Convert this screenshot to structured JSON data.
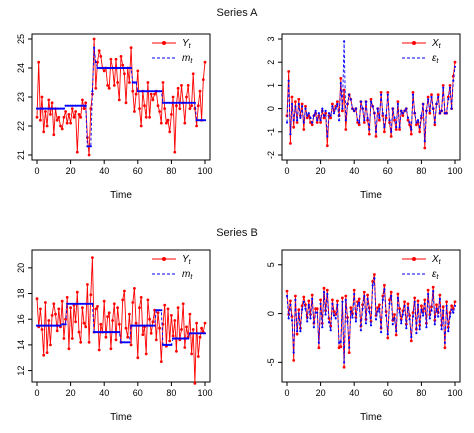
{
  "groups": [
    {
      "title": "Series A"
    },
    {
      "title": "Series B"
    }
  ],
  "colors": {
    "observed": "#ff0000",
    "smooth": "#0000ff",
    "axis": "#000000"
  },
  "chart_data": [
    {
      "type": "line",
      "xlabel": "Time",
      "ylabel": "",
      "xlim": [
        0,
        100
      ],
      "ylim": [
        21,
        25
      ],
      "xticks": [
        0,
        20,
        40,
        60,
        80,
        100
      ],
      "yticks": [
        21,
        22,
        23,
        24,
        25
      ],
      "grid": false,
      "legend": "top-right",
      "series": [
        {
          "name": "Y_t",
          "style": "solid-dot",
          "color": "#ff0000",
          "values": [
            22.3,
            24.2,
            22.2,
            23.0,
            21.8,
            22.5,
            22.0,
            22.9,
            22.4,
            22.8,
            21.7,
            22.6,
            22.2,
            22.3,
            22.0,
            21.9,
            22.3,
            22.5,
            22.1,
            22.4,
            22.1,
            22.6,
            22.3,
            22.5,
            21.1,
            22.4,
            22.3,
            22.9,
            22.6,
            22.8,
            21.6,
            21.0,
            22.6,
            23.1,
            25.0,
            23.3,
            24.2,
            24.6,
            24.4,
            24.0,
            23.9,
            24.0,
            23.4,
            23.3,
            24.3,
            24.0,
            23.4,
            24.3,
            23.5,
            22.9,
            24.4,
            24.1,
            23.8,
            22.8,
            24.0,
            23.5,
            24.7,
            23.2,
            22.5,
            23.1,
            23.9,
            22.6,
            22.0,
            23.2,
            22.7,
            22.3,
            23.5,
            22.3,
            23.1,
            22.9,
            23.1,
            23.2,
            22.7,
            22.5,
            22.1,
            23.5,
            22.6,
            22.1,
            22.2,
            21.8,
            22.4,
            23.0,
            21.1,
            22.7,
            23.3,
            22.6,
            23.4,
            22.8,
            22.1,
            23.0,
            23.4,
            22.6,
            22.7,
            23.8,
            22.6,
            22.0,
            22.7,
            23.2,
            22.2,
            23.6,
            24.2
          ]
        },
        {
          "name": "m_t",
          "style": "dashed",
          "color": "#0000ff",
          "values": [
            22.6,
            22.6,
            22.6,
            22.6,
            22.6,
            22.6,
            22.6,
            22.6,
            22.6,
            22.6,
            22.6,
            22.6,
            22.6,
            22.6,
            22.6,
            22.6,
            22.6,
            22.7,
            22.7,
            22.7,
            22.7,
            22.7,
            22.7,
            22.7,
            22.7,
            22.7,
            22.7,
            22.7,
            22.7,
            22.7,
            21.3,
            21.3,
            21.3,
            23.2,
            24.7,
            24.2,
            24.0,
            24.0,
            24.0,
            24.0,
            24.0,
            24.0,
            24.0,
            24.0,
            24.0,
            24.0,
            24.0,
            24.0,
            24.0,
            24.0,
            24.0,
            24.0,
            24.0,
            24.0,
            24.0,
            24.0,
            24.0,
            23.5,
            23.5,
            23.5,
            23.2,
            23.2,
            23.2,
            23.2,
            23.2,
            23.2,
            23.2,
            23.2,
            23.2,
            23.2,
            23.2,
            23.2,
            23.2,
            23.2,
            23.2,
            22.8,
            22.8,
            22.8,
            22.8,
            22.8,
            22.8,
            22.8,
            22.8,
            22.8,
            22.8,
            22.8,
            22.8,
            22.8,
            22.8,
            22.8,
            22.8,
            22.8,
            22.8,
            22.8,
            22.8,
            22.2,
            22.2,
            22.2,
            22.2,
            22.2,
            22.2
          ]
        }
      ]
    },
    {
      "type": "line",
      "xlabel": "Time",
      "ylabel": "",
      "xlim": [
        0,
        100
      ],
      "ylim": [
        -2,
        3
      ],
      "xticks": [
        0,
        20,
        40,
        60,
        80,
        100
      ],
      "yticks": [
        -2,
        -1,
        0,
        1,
        2,
        3
      ],
      "grid": false,
      "legend": "top-right",
      "series": [
        {
          "name": "X_t",
          "style": "solid-dot",
          "color": "#ff0000",
          "values": [
            -0.3,
            1.6,
            -1.5,
            0.5,
            -0.8,
            0.3,
            -0.6,
            0.4,
            -0.3,
            0.2,
            -0.9,
            0.1,
            -0.4,
            -0.3,
            -0.6,
            -0.7,
            -0.3,
            -0.2,
            -0.6,
            -0.3,
            -0.6,
            -0.1,
            -0.4,
            -0.2,
            -1.6,
            -0.3,
            -0.4,
            0.2,
            -0.1,
            0.1,
            0.3,
            -0.3,
            1.3,
            -0.1,
            0.8,
            -0.9,
            0.2,
            0.6,
            0.4,
            0.0,
            -0.1,
            0.0,
            -0.6,
            -0.7,
            0.3,
            0.0,
            -0.6,
            0.3,
            -0.5,
            -1.1,
            0.4,
            0.1,
            -0.2,
            -1.2,
            0.0,
            -0.5,
            0.7,
            -0.3,
            -1.0,
            -0.4,
            0.7,
            -0.6,
            -1.2,
            0.0,
            -0.5,
            -0.9,
            0.3,
            -0.9,
            -0.1,
            -0.3,
            -0.1,
            0.0,
            -0.5,
            -0.7,
            -1.1,
            0.7,
            -0.2,
            -0.7,
            -0.6,
            -1.0,
            -0.4,
            0.2,
            -1.7,
            -0.1,
            0.5,
            -0.2,
            0.6,
            0.0,
            -0.7,
            0.2,
            0.6,
            -0.2,
            -0.1,
            1.0,
            -0.2,
            -0.2,
            0.5,
            1.0,
            0.0,
            1.4,
            2.0
          ]
        },
        {
          "name": "ε_t",
          "style": "dashed",
          "color": "#0000ff",
          "values": [
            -0.6,
            1.2,
            -1.1,
            0.2,
            -0.5,
            0.1,
            -0.5,
            0.2,
            -0.4,
            0.1,
            -0.6,
            0.0,
            -0.3,
            -0.2,
            -0.4,
            -0.6,
            -0.3,
            -0.1,
            -0.5,
            -0.2,
            -0.5,
            0.0,
            -0.3,
            -0.1,
            -1.2,
            -0.2,
            -0.3,
            0.1,
            -0.2,
            0.0,
            0.2,
            -0.5,
            1.1,
            0.0,
            2.9,
            -0.5,
            0.2,
            0.6,
            0.4,
            0.0,
            -0.1,
            0.0,
            -0.5,
            -0.6,
            0.3,
            0.0,
            -0.5,
            0.3,
            -0.4,
            -0.9,
            0.3,
            0.1,
            -0.2,
            -1.0,
            0.0,
            -0.4,
            0.6,
            -0.2,
            -0.8,
            -0.3,
            0.6,
            -0.5,
            -1.0,
            0.0,
            -0.4,
            -0.8,
            0.2,
            -0.8,
            -0.1,
            -0.2,
            -0.1,
            0.0,
            -0.4,
            -0.6,
            -0.9,
            0.6,
            -0.2,
            -0.6,
            -0.5,
            -0.8,
            -0.3,
            0.2,
            -1.4,
            -0.1,
            0.4,
            -0.1,
            0.5,
            0.0,
            -0.6,
            0.2,
            0.5,
            -0.2,
            -0.1,
            0.9,
            -0.2,
            -0.2,
            0.4,
            0.9,
            0.0,
            1.2,
            1.8
          ]
        }
      ]
    },
    {
      "type": "line",
      "xlabel": "Time",
      "ylabel": "",
      "xlim": [
        0,
        100
      ],
      "ylim": [
        11.5,
        21
      ],
      "xticks": [
        0,
        20,
        40,
        60,
        80,
        100
      ],
      "yticks": [
        12,
        14,
        16,
        18,
        20
      ],
      "grid": false,
      "legend": "top-right",
      "series": [
        {
          "name": "Y_t",
          "style": "solid-dot",
          "color": "#ff0000",
          "values": [
            17.6,
            15.4,
            16.8,
            15.2,
            13.2,
            17.3,
            13.4,
            15.9,
            14.0,
            16.3,
            17.2,
            16.4,
            15.1,
            16.8,
            15.4,
            17.4,
            14.5,
            16.0,
            17.7,
            13.7,
            16.9,
            14.5,
            17.1,
            15.8,
            18.1,
            15.0,
            14.2,
            16.9,
            15.7,
            15.4,
            18.7,
            14.2,
            17.9,
            20.8,
            15.0,
            16.8,
            17.0,
            13.6,
            15.6,
            15.0,
            17.4,
            14.6,
            16.2,
            16.5,
            13.7,
            15.9,
            17.2,
            14.4,
            16.9,
            15.6,
            14.2,
            17.5,
            18.2,
            15.3,
            14.6,
            16.4,
            14.0,
            17.3,
            18.4,
            15.7,
            13.0,
            16.9,
            17.7,
            14.8,
            15.4,
            13.3,
            17.5,
            16.0,
            14.9,
            15.8,
            16.7,
            14.4,
            16.5,
            15.3,
            12.7,
            15.6,
            17.1,
            13.9,
            16.8,
            14.3,
            16.3,
            14.7,
            15.9,
            13.5,
            16.9,
            14.4,
            15.2,
            17.2,
            13.8,
            15.4,
            14.6,
            16.4,
            13.3,
            15.2,
            11.0,
            15.7,
            13.1,
            14.6,
            15.3,
            15.0,
            15.7
          ]
        },
        {
          "name": "m_t",
          "style": "dashed",
          "color": "#0000ff",
          "values": [
            15.5,
            15.5,
            15.5,
            15.5,
            15.5,
            15.5,
            15.5,
            15.5,
            15.5,
            15.5,
            15.5,
            15.5,
            15.5,
            15.5,
            15.5,
            15.6,
            15.6,
            15.6,
            17.2,
            17.2,
            17.2,
            17.2,
            17.2,
            17.2,
            17.2,
            17.2,
            17.2,
            17.2,
            17.2,
            17.2,
            17.2,
            17.2,
            17.2,
            17.2,
            15.0,
            15.0,
            15.0,
            15.0,
            15.0,
            15.0,
            15.0,
            15.0,
            15.0,
            15.0,
            15.0,
            15.0,
            15.0,
            15.0,
            15.0,
            15.0,
            14.2,
            14.2,
            14.2,
            14.2,
            14.2,
            14.2,
            15.5,
            15.5,
            15.5,
            15.5,
            15.5,
            15.5,
            15.5,
            15.5,
            15.5,
            15.5,
            15.5,
            15.5,
            15.5,
            15.5,
            15.5,
            16.7,
            16.7,
            16.7,
            16.7,
            14.0,
            14.0,
            14.0,
            14.0,
            14.0,
            14.0,
            14.5,
            14.5,
            14.5,
            14.5,
            14.5,
            14.5,
            14.5,
            14.5,
            14.5,
            14.5,
            14.9,
            14.9,
            14.9,
            14.9,
            14.9,
            14.9,
            14.9,
            14.9,
            14.9,
            14.9
          ]
        }
      ]
    },
    {
      "type": "line",
      "xlabel": "Time",
      "ylabel": "",
      "xlim": [
        0,
        100
      ],
      "ylim": [
        -6.5,
        6
      ],
      "xticks": [
        0,
        20,
        40,
        60,
        80,
        100
      ],
      "yticks": [
        -5,
        0,
        5
      ],
      "grid": false,
      "legend": "top-right",
      "series": [
        {
          "name": "X_t",
          "style": "solid-dot",
          "color": "#ff0000",
          "values": [
            2.3,
            -0.1,
            1.3,
            -0.3,
            -4.8,
            1.8,
            -2.1,
            0.4,
            -1.5,
            0.8,
            1.7,
            0.9,
            -0.4,
            1.3,
            -0.1,
            1.9,
            -1.0,
            0.5,
            0.5,
            -3.5,
            1.4,
            -1.0,
            2.6,
            0.3,
            2.4,
            -0.5,
            -1.3,
            1.4,
            0.2,
            -0.1,
            1.3,
            -3.5,
            -3.4,
            1.6,
            -5.5,
            1.8,
            -0.4,
            -4.0,
            0.6,
            0.0,
            2.4,
            -0.4,
            1.2,
            1.5,
            -1.3,
            0.9,
            2.2,
            -0.6,
            1.9,
            0.6,
            -0.8,
            3.3,
            4.0,
            -0.2,
            0.6,
            0.9,
            -1.5,
            1.8,
            2.9,
            0.2,
            -2.5,
            1.4,
            2.2,
            -0.7,
            -0.1,
            -2.2,
            2.0,
            0.5,
            -0.6,
            0.3,
            1.2,
            -1.1,
            1.0,
            -0.2,
            -2.8,
            0.1,
            1.6,
            -1.6,
            1.3,
            -1.2,
            0.8,
            0.2,
            1.4,
            -1.0,
            2.4,
            -0.1,
            0.7,
            2.7,
            -0.7,
            0.9,
            0.1,
            1.9,
            -1.2,
            0.7,
            -3.5,
            1.2,
            -1.4,
            0.1,
            0.8,
            0.5,
            1.2
          ]
        },
        {
          "name": "ε_t",
          "style": "dashed",
          "color": "#0000ff",
          "values": [
            1.8,
            -0.5,
            0.9,
            -0.7,
            -4.0,
            1.4,
            -1.8,
            0.0,
            -1.8,
            0.4,
            1.2,
            0.5,
            -0.8,
            0.9,
            -0.5,
            1.5,
            -1.4,
            0.1,
            0.1,
            -3.0,
            1.0,
            -1.4,
            2.2,
            -0.1,
            2.0,
            -0.9,
            -1.7,
            1.0,
            -0.2,
            -0.5,
            0.9,
            -3.0,
            -2.9,
            1.2,
            -5.0,
            1.4,
            -0.8,
            -3.5,
            0.2,
            -0.4,
            2.0,
            -0.8,
            0.8,
            1.1,
            -1.7,
            0.5,
            1.8,
            -1.0,
            1.5,
            0.2,
            -1.2,
            2.9,
            3.6,
            -0.6,
            0.2,
            0.5,
            -1.9,
            1.4,
            2.5,
            -0.2,
            -2.1,
            1.0,
            1.8,
            -1.1,
            -0.5,
            -1.8,
            1.6,
            0.1,
            -1.0,
            -0.1,
            0.8,
            -1.5,
            0.6,
            -0.6,
            -2.4,
            -0.3,
            1.2,
            -2.0,
            0.9,
            -1.6,
            0.4,
            -0.2,
            1.0,
            -1.4,
            2.0,
            -0.5,
            0.3,
            2.3,
            -1.1,
            0.5,
            -0.3,
            1.5,
            -1.6,
            0.3,
            -3.0,
            0.8,
            -1.8,
            -0.3,
            0.4,
            0.1,
            0.8
          ]
        }
      ]
    }
  ]
}
